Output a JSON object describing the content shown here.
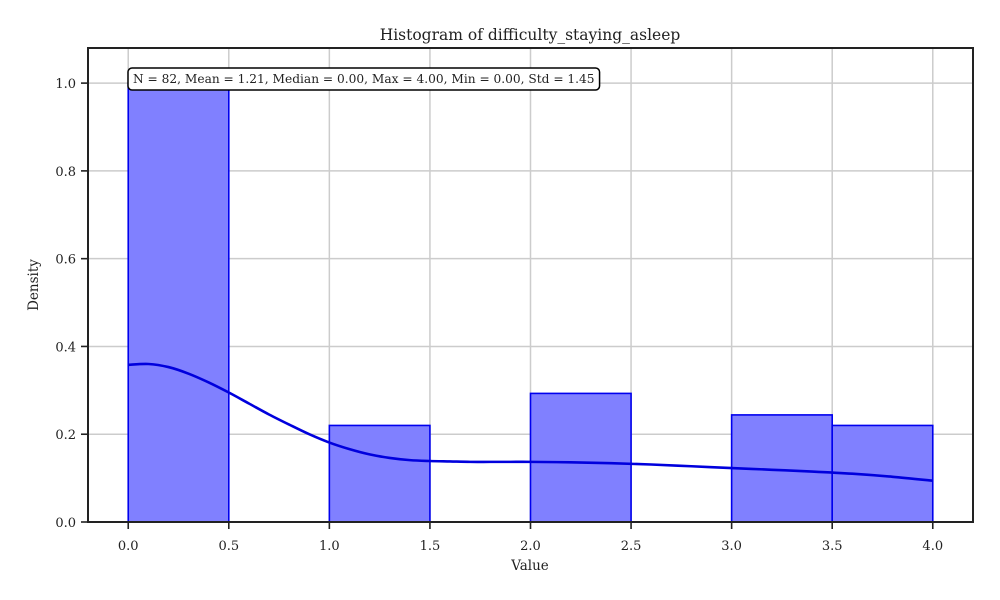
{
  "chart_data": {
    "type": "bar",
    "title": "Histogram of difficulty_staying_asleep",
    "xlabel": "Value",
    "ylabel": "Density",
    "xlim": [
      -0.2,
      4.2
    ],
    "ylim": [
      0,
      1.08
    ],
    "x_ticks": [
      0,
      0.5,
      1,
      1.5,
      2,
      2.5,
      3,
      3.5,
      4
    ],
    "y_ticks": [
      0,
      0.2,
      0.4,
      0.6,
      0.8,
      1.0
    ],
    "x_tick_labels": [
      "0.0",
      "0.5",
      "1.0",
      "1.5",
      "2.0",
      "2.5",
      "3.0",
      "3.5",
      "4.0"
    ],
    "y_tick_labels": [
      "0.0",
      "0.2",
      "0.4",
      "0.6",
      "0.8",
      "1.0"
    ],
    "grid": true,
    "bins": [
      {
        "start": 0.0,
        "end": 0.5,
        "density": 1.0
      },
      {
        "start": 0.5,
        "end": 1.0,
        "density": 0.0
      },
      {
        "start": 1.0,
        "end": 1.5,
        "density": 0.22
      },
      {
        "start": 1.5,
        "end": 2.0,
        "density": 0.0
      },
      {
        "start": 2.0,
        "end": 2.5,
        "density": 0.293
      },
      {
        "start": 2.5,
        "end": 3.0,
        "density": 0.0
      },
      {
        "start": 3.0,
        "end": 3.5,
        "density": 0.244
      },
      {
        "start": 3.5,
        "end": 4.0,
        "density": 0.22
      }
    ],
    "kde": {
      "x": [
        0.0,
        0.1,
        0.2,
        0.3,
        0.4,
        0.5,
        0.6,
        0.7,
        0.8,
        0.9,
        1.0,
        1.1,
        1.2,
        1.3,
        1.4,
        1.5,
        1.6,
        1.7,
        1.8,
        1.9,
        2.0,
        2.2,
        2.4,
        2.6,
        2.8,
        3.0,
        3.2,
        3.4,
        3.6,
        3.8,
        4.0
      ],
      "y": [
        0.358,
        0.36,
        0.353,
        0.338,
        0.318,
        0.295,
        0.27,
        0.245,
        0.222,
        0.2,
        0.181,
        0.166,
        0.154,
        0.146,
        0.141,
        0.139,
        0.138,
        0.137,
        0.137,
        0.137,
        0.137,
        0.136,
        0.134,
        0.131,
        0.127,
        0.123,
        0.119,
        0.115,
        0.11,
        0.103,
        0.094
      ]
    },
    "annotation": "N = 82, Mean = 1.21, Median = 0.00, Max = 4.00, Min = 0.00, Std = 1.45",
    "colors": {
      "bar_fill": "#8080ff",
      "bar_edge": "#0000ee",
      "kde_line": "#0000dd",
      "grid": "#cccccc",
      "axes": "#222222"
    }
  }
}
